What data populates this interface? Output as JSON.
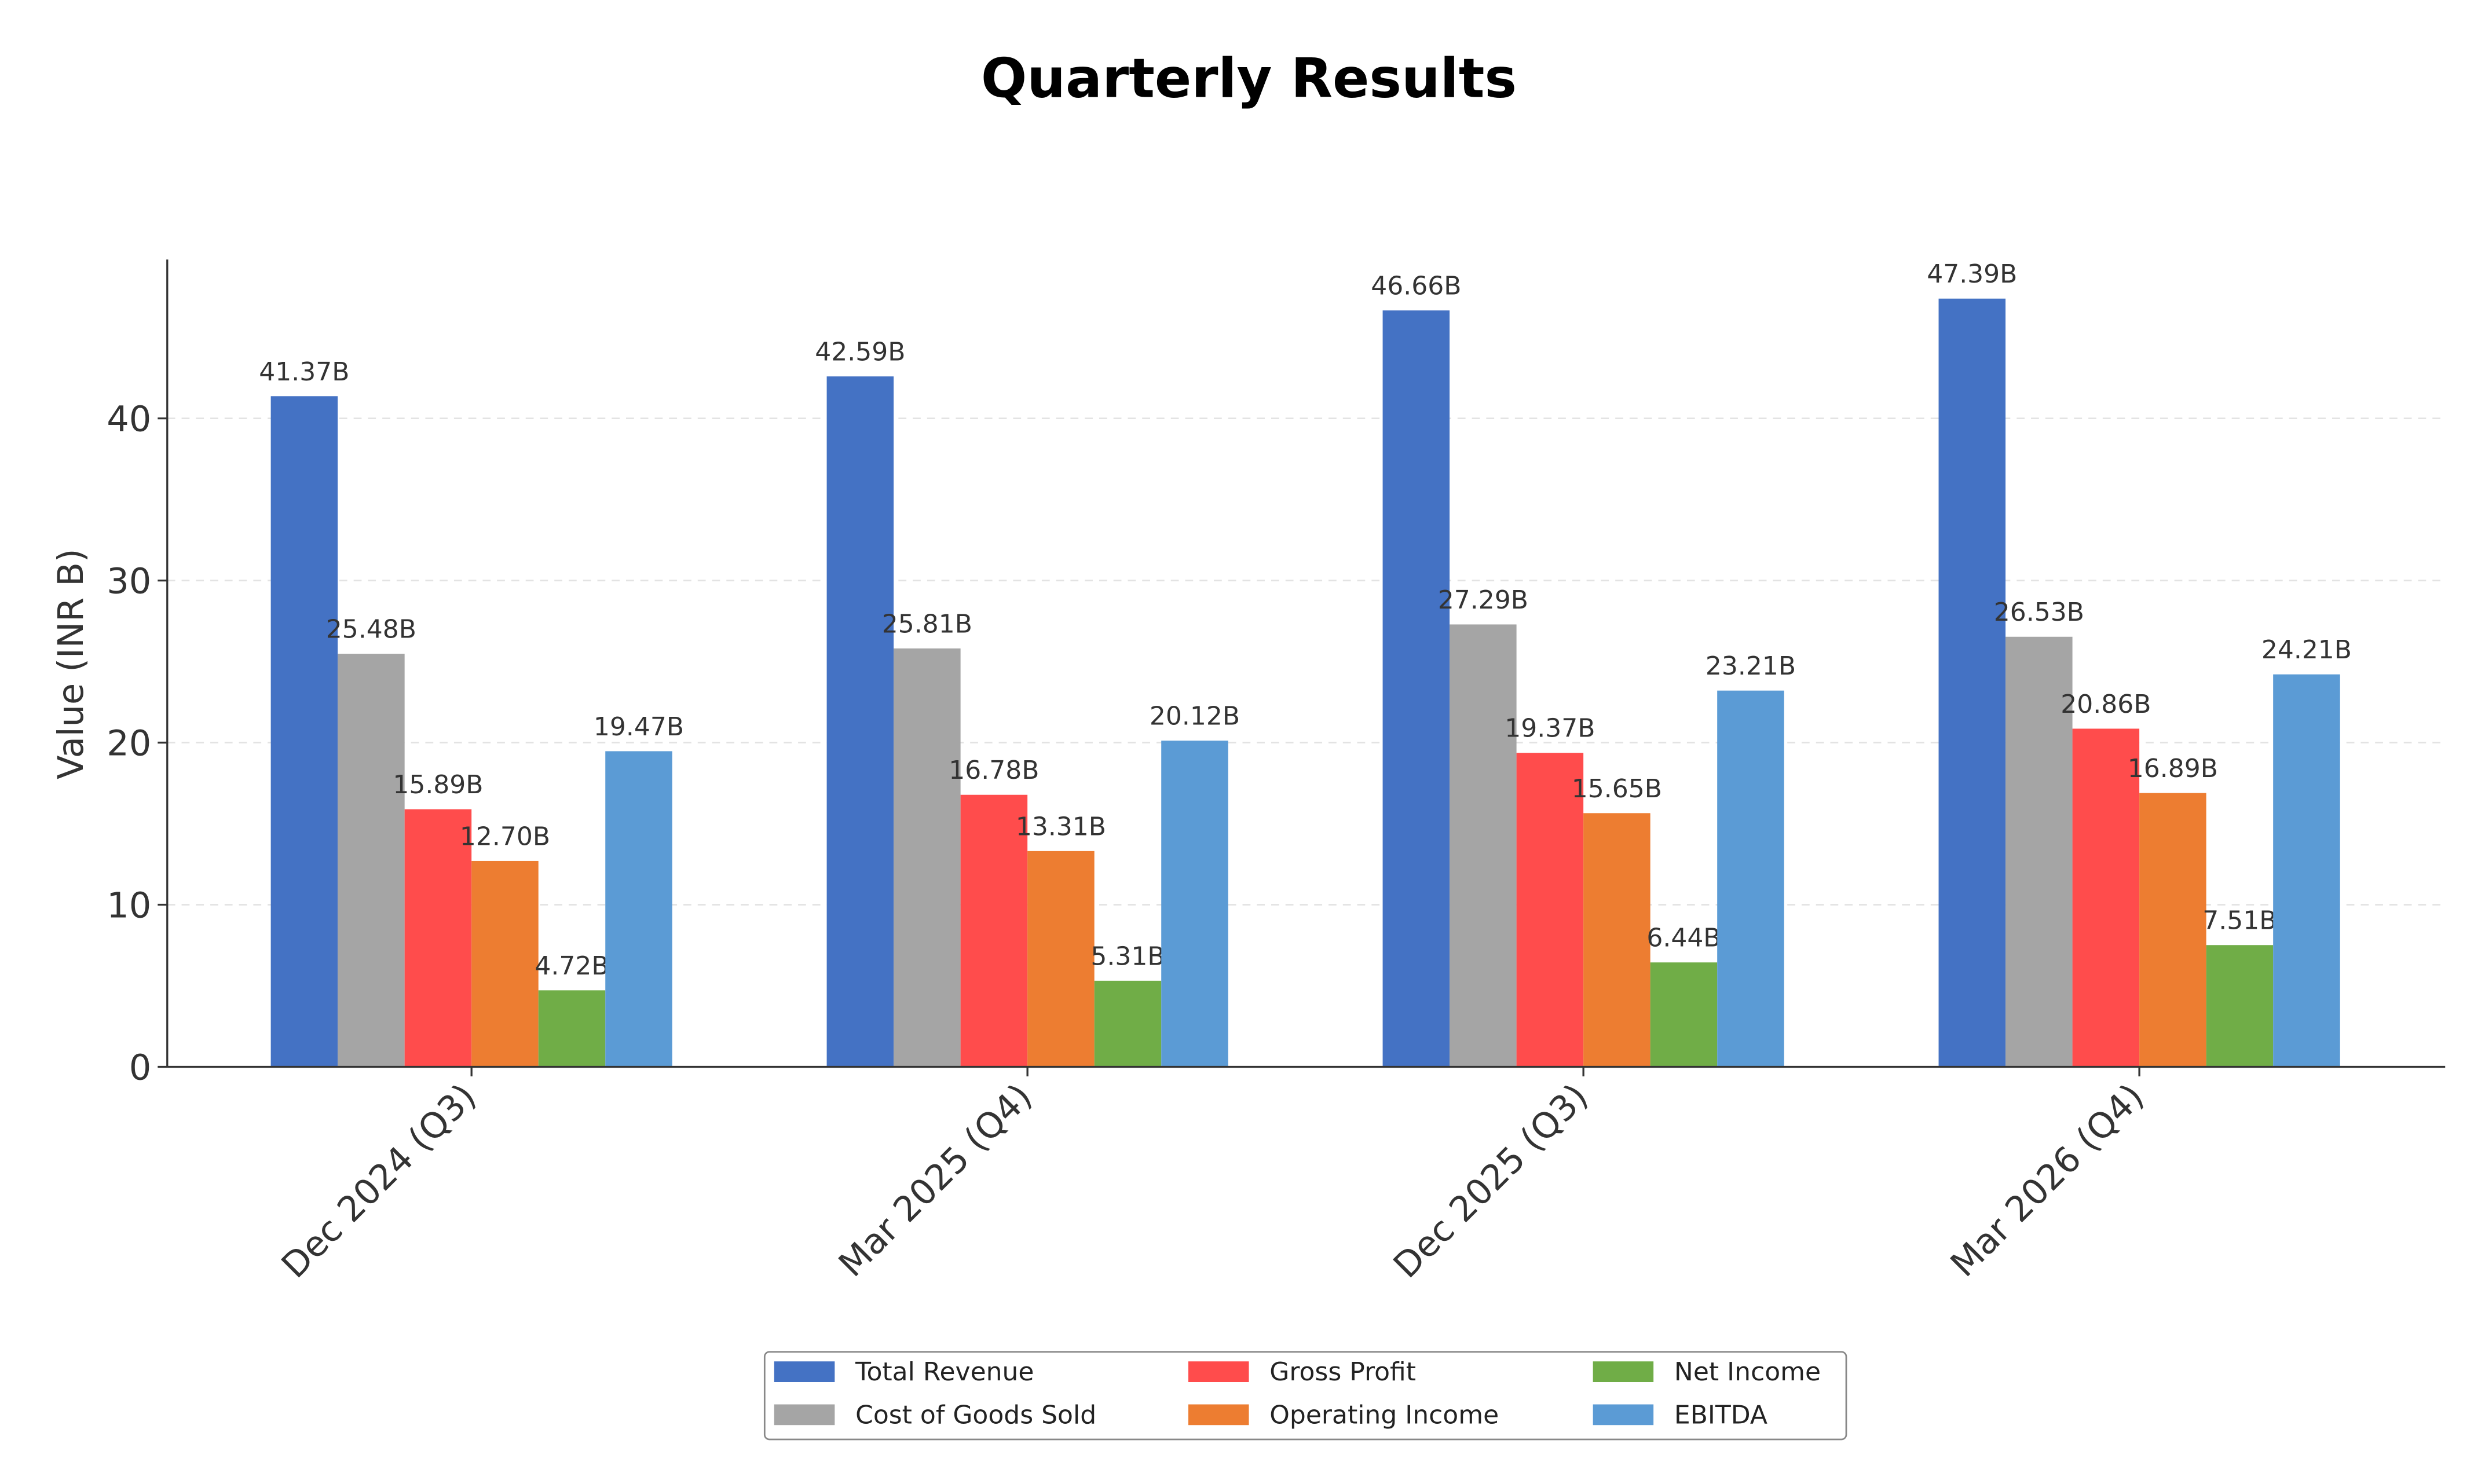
{
  "chart_data": {
    "type": "bar",
    "title": "Quarterly Results",
    "xlabel": "",
    "ylabel": "Value (INR B)",
    "ylim": [
      0,
      49.8
    ],
    "yticks": [
      0,
      10,
      20,
      30,
      40
    ],
    "grid": "y-dashed",
    "legend_position": "bottom-center",
    "categories": [
      "Dec 2024 (Q3)",
      "Mar 2025 (Q4)",
      "Dec 2025 (Q3)",
      "Mar 2026 (Q4)"
    ],
    "series": [
      {
        "name": "Total Revenue",
        "color": "#4472C4",
        "values": [
          41.37,
          42.59,
          46.66,
          47.39
        ],
        "labels": [
          "41.37B",
          "42.59B",
          "46.66B",
          "47.39B"
        ]
      },
      {
        "name": "Cost of Goods Sold",
        "color": "#A5A5A5",
        "values": [
          25.48,
          25.81,
          27.29,
          26.53
        ],
        "labels": [
          "25.48B",
          "25.81B",
          "27.29B",
          "26.53B"
        ]
      },
      {
        "name": "Gross Profit",
        "color": "#FF4C4C",
        "values": [
          15.89,
          16.78,
          19.37,
          20.86
        ],
        "labels": [
          "15.89B",
          "16.78B",
          "19.37B",
          "20.86B"
        ]
      },
      {
        "name": "Operating Income",
        "color": "#ED7D31",
        "values": [
          12.7,
          13.31,
          15.65,
          16.89
        ],
        "labels": [
          "12.70B",
          "13.31B",
          "15.65B",
          "16.89B"
        ]
      },
      {
        "name": "Net Income",
        "color": "#70AD47",
        "values": [
          4.72,
          5.31,
          6.44,
          7.51
        ],
        "labels": [
          "4.72B",
          "5.31B",
          "6.44B",
          "7.51B"
        ]
      },
      {
        "name": "EBITDA",
        "color": "#5B9BD5",
        "values": [
          19.47,
          20.12,
          23.21,
          24.21
        ],
        "labels": [
          "19.47B",
          "20.12B",
          "23.21B",
          "24.21B"
        ]
      }
    ]
  }
}
